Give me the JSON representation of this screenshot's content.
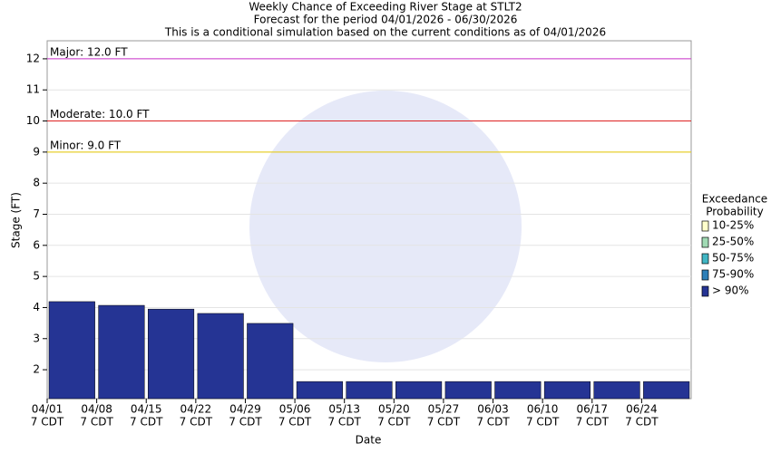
{
  "chart_data": {
    "type": "bar",
    "title": "Weekly Chance of Exceeding River Stage at STLT2",
    "subtitle": "Forecast for the period 04/01/2026 - 06/30/2026",
    "note": "This is a conditional simulation based on the current conditions as of 04/01/2026",
    "x_label": "Date",
    "y_label": "Stage (FT)",
    "categories": [
      "04/01",
      "04/08",
      "04/15",
      "04/22",
      "04/29",
      "05/06",
      "05/13",
      "05/20",
      "05/27",
      "06/03",
      "06/10",
      "06/17",
      "06/24"
    ],
    "x_sublabel": "7 CDT",
    "legend_title": [
      "Exceedance",
      "Probability"
    ],
    "series": [
      {
        "name": "10-25%",
        "color": "#ffffcc",
        "values": [
          null,
          null,
          null,
          null,
          null,
          null,
          null,
          null,
          null,
          null,
          null,
          null,
          null
        ]
      },
      {
        "name": "25-50%",
        "color": "#a1dab4",
        "values": [
          null,
          null,
          null,
          null,
          null,
          null,
          null,
          null,
          null,
          null,
          null,
          null,
          null
        ]
      },
      {
        "name": "50-75%",
        "color": "#41b6c4",
        "values": [
          null,
          null,
          null,
          null,
          null,
          null,
          null,
          null,
          null,
          null,
          null,
          null,
          null
        ]
      },
      {
        "name": "75-90%",
        "color": "#2c7fb8",
        "values": [
          null,
          null,
          null,
          null,
          null,
          null,
          null,
          null,
          null,
          null,
          null,
          null,
          null
        ]
      },
      {
        "name": "> 90%",
        "color": "#253494",
        "values": [
          4.19,
          4.07,
          3.95,
          3.81,
          3.49,
          1.62,
          1.62,
          1.62,
          1.62,
          1.62,
          1.62,
          1.62,
          1.62
        ]
      }
    ],
    "thresholds": [
      {
        "label": "Major: 12.0 FT",
        "value": 12,
        "color": "#cc33cc"
      },
      {
        "label": "Moderate: 10.0 FT",
        "value": 10,
        "color": "#dd2222"
      },
      {
        "label": "Minor: 9.0 FT",
        "value": 9,
        "color": "#e6c800"
      }
    ],
    "ylim": [
      1.07,
      12.58
    ],
    "yticks": [
      2,
      3,
      4,
      5,
      6,
      7,
      8,
      9,
      10,
      11,
      12
    ],
    "grid": true
  }
}
